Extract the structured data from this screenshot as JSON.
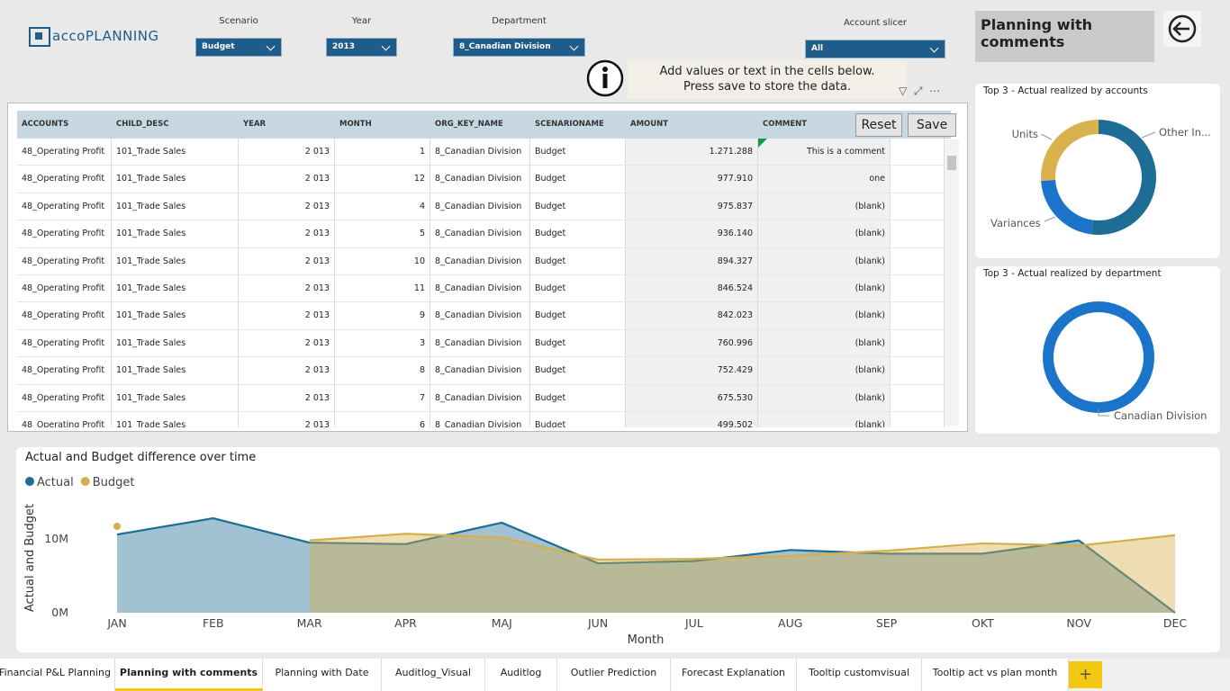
{
  "header": {
    "logo": "accoPLANNING",
    "title": "Planning with comments"
  },
  "filters": [
    {
      "label": "Scenario",
      "value": "Budget"
    },
    {
      "label": "Year",
      "value": "2013"
    },
    {
      "label": "Department",
      "value": "8_Canadian Division"
    },
    {
      "label": "Account slicer",
      "value": "All"
    }
  ],
  "info": {
    "line1": "Add values or text in the cells below.",
    "line2": "Press save to store the data."
  },
  "table": {
    "buttons": [
      "Reset",
      "Save"
    ],
    "columns": [
      "ACCOUNTS",
      "CHILD_DESC",
      "YEAR",
      "MONTH",
      "ORG_KEY_NAME",
      "SCENARIONAME",
      "AMOUNT",
      "COMMENT"
    ],
    "rows": [
      [
        "48_Operating Profit",
        "101_Trade Sales",
        "2 013",
        1,
        "8_Canadian Division",
        "Budget",
        "1.271.288",
        "This is a comment"
      ],
      [
        "48_Operating Profit",
        "101_Trade Sales",
        "2 013",
        12,
        "8_Canadian Division",
        "Budget",
        "977.910",
        "one"
      ],
      [
        "48_Operating Profit",
        "101_Trade Sales",
        "2 013",
        4,
        "8_Canadian Division",
        "Budget",
        "975.837",
        "(blank)"
      ],
      [
        "48_Operating Profit",
        "101_Trade Sales",
        "2 013",
        5,
        "8_Canadian Division",
        "Budget",
        "936.140",
        "(blank)"
      ],
      [
        "48_Operating Profit",
        "101_Trade Sales",
        "2 013",
        10,
        "8_Canadian Division",
        "Budget",
        "894.327",
        "(blank)"
      ],
      [
        "48_Operating Profit",
        "101_Trade Sales",
        "2 013",
        11,
        "8_Canadian Division",
        "Budget",
        "846.524",
        "(blank)"
      ],
      [
        "48_Operating Profit",
        "101_Trade Sales",
        "2 013",
        9,
        "8_Canadian Division",
        "Budget",
        "842.023",
        "(blank)"
      ],
      [
        "48_Operating Profit",
        "101_Trade Sales",
        "2 013",
        3,
        "8_Canadian Division",
        "Budget",
        "760.996",
        "(blank)"
      ],
      [
        "48_Operating Profit",
        "101_Trade Sales",
        "2 013",
        8,
        "8_Canadian Division",
        "Budget",
        "752.429",
        "(blank)"
      ],
      [
        "48_Operating Profit",
        "101_Trade Sales",
        "2 013",
        7,
        "8_Canadian Division",
        "Budget",
        "675.530",
        "(blank)"
      ],
      [
        "48_Operating Profit",
        "101_Trade Sales",
        "2 013",
        6,
        "8_Canadian Division",
        "Budget",
        "499.502",
        "(blank)"
      ]
    ]
  },
  "donut_accounts": {
    "type": "pie",
    "title": "Top 3 - Actual realized by accounts",
    "categories": [
      "Other In...",
      "Variances",
      "Units"
    ],
    "values": [
      52,
      22,
      26
    ],
    "colors": [
      "#1d6d95",
      "#1b74c9",
      "#d8b24c"
    ]
  },
  "donut_department": {
    "type": "pie",
    "title": "Top 3 - Actual realized by department",
    "categories": [
      "Canadian Division"
    ],
    "values": [
      100
    ],
    "colors": [
      "#1b74c9"
    ]
  },
  "chart_data": {
    "type": "area",
    "title": "Actual and Budget difference over time",
    "x_label": "Month",
    "y_label": "Actual and Budget",
    "categories": [
      "JAN",
      "FEB",
      "MAR",
      "APR",
      "MAJ",
      "JUN",
      "JUL",
      "AUG",
      "SEP",
      "OKT",
      "NOV",
      "DEC"
    ],
    "series": [
      {
        "name": "Actual",
        "color": "#1d6d95",
        "values": [
          10.6,
          12.8,
          9.5,
          9.3,
          12.2,
          6.7,
          7.0,
          8.5,
          8.0,
          8.0,
          9.8,
          0
        ]
      },
      {
        "name": "Budget",
        "color": "#d6ae4b",
        "values": [
          11.7,
          null,
          9.8,
          10.7,
          10.2,
          7.2,
          7.3,
          7.7,
          8.4,
          9.4,
          9.1,
          10.5
        ]
      }
    ],
    "ylim": [
      0,
      15
    ],
    "yticks": [
      {
        "value": 0,
        "label": "0M"
      },
      {
        "value": 10,
        "label": "10M"
      }
    ]
  },
  "tabs": [
    "Financial P&L Planning",
    "Planning with comments",
    "Planning with Date",
    "Auditlog_Visual",
    "Auditlog",
    "Outlier Prediction",
    "Forecast Explanation",
    "Tooltip customvisual",
    "Tooltip act vs plan month"
  ],
  "active_tab": "Planning with comments"
}
